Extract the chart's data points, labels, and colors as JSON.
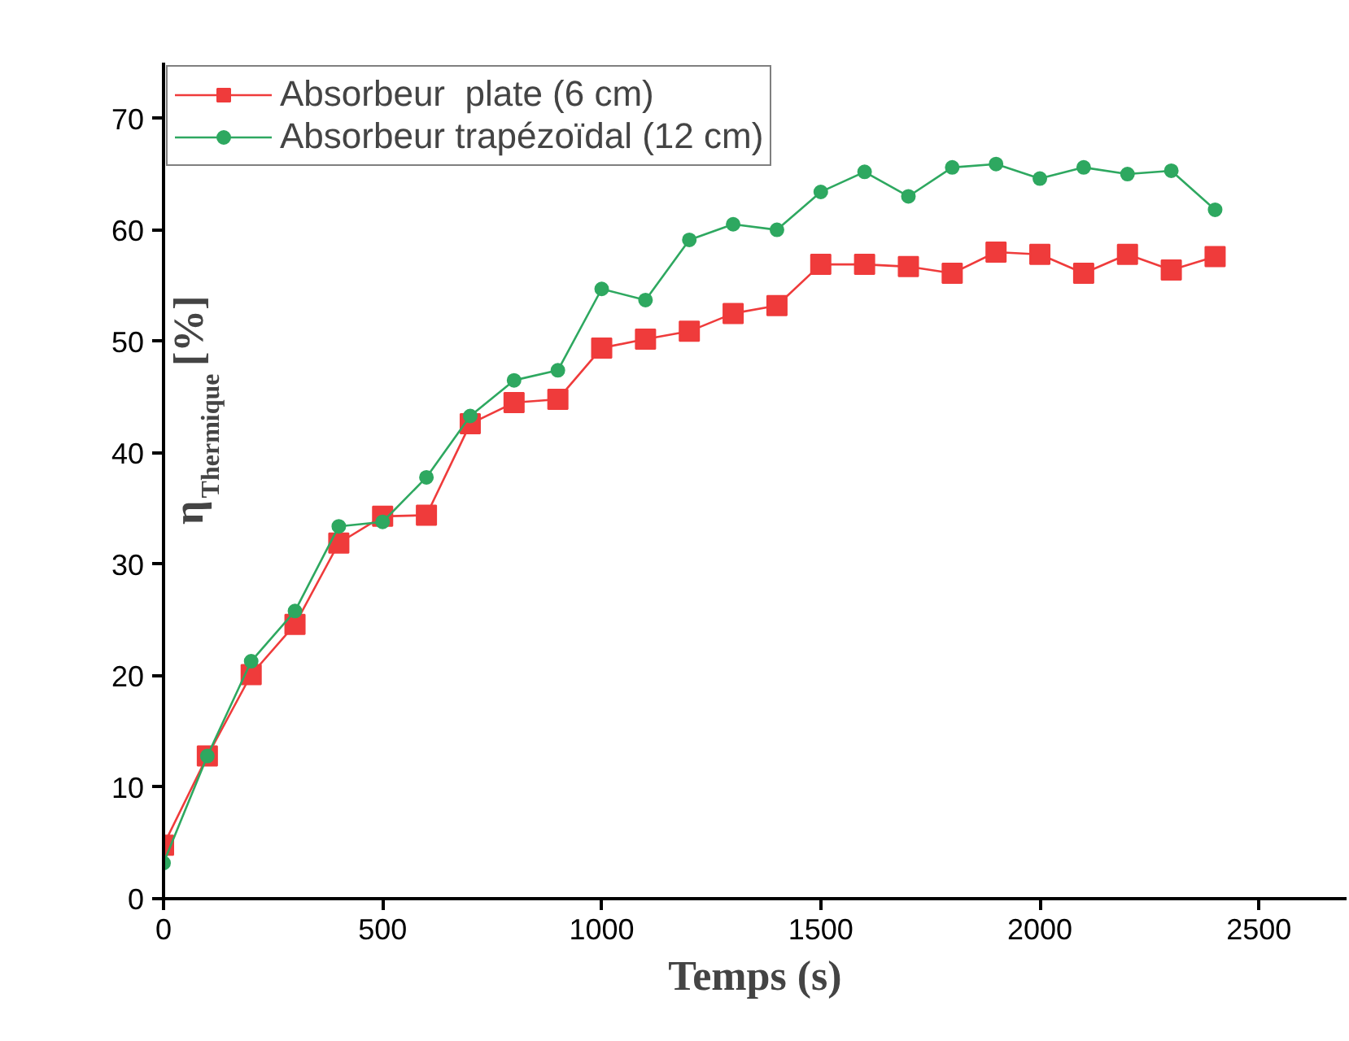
{
  "chart_data": {
    "type": "line",
    "xlabel": "Temps (s)",
    "ylabel": "η$_{Thermique}$ [%]",
    "x": [
      0,
      100,
      200,
      300,
      400,
      500,
      600,
      700,
      800,
      900,
      1000,
      1100,
      1200,
      1300,
      1400,
      1500,
      1600,
      1700,
      1800,
      1900,
      2000,
      2100,
      2200,
      2300,
      2400
    ],
    "series": [
      {
        "name": "Absorbeur  plate (6 cm)",
        "color": "#ef3b3b",
        "marker": "square",
        "values": [
          4.8,
          12.8,
          20.1,
          24.6,
          31.9,
          34.3,
          34.4,
          42.6,
          44.5,
          44.8,
          49.4,
          50.2,
          50.9,
          52.5,
          53.2,
          56.9,
          56.9,
          56.7,
          56.1,
          58.0,
          57.8,
          56.1,
          57.8,
          56.4,
          57.6
        ]
      },
      {
        "name": "Absorbeur trapézoïdal (12 cm)",
        "color": "#2ea860",
        "marker": "circle",
        "values": [
          3.2,
          12.8,
          21.3,
          25.8,
          33.4,
          33.8,
          37.8,
          43.3,
          46.5,
          47.4,
          54.7,
          53.7,
          59.1,
          60.5,
          60.0,
          63.4,
          65.2,
          63.0,
          65.6,
          65.9,
          64.6,
          65.6,
          65.0,
          65.3,
          61.8
        ]
      }
    ],
    "xlim": [
      0,
      2700
    ],
    "xticks": [
      0,
      500,
      1000,
      1500,
      2000,
      2500
    ],
    "ylim": [
      0,
      75
    ],
    "yticks": [
      0,
      10,
      20,
      30,
      40,
      50,
      60,
      70
    ],
    "grid": false,
    "legend": "top left",
    "line_style": "solid"
  }
}
